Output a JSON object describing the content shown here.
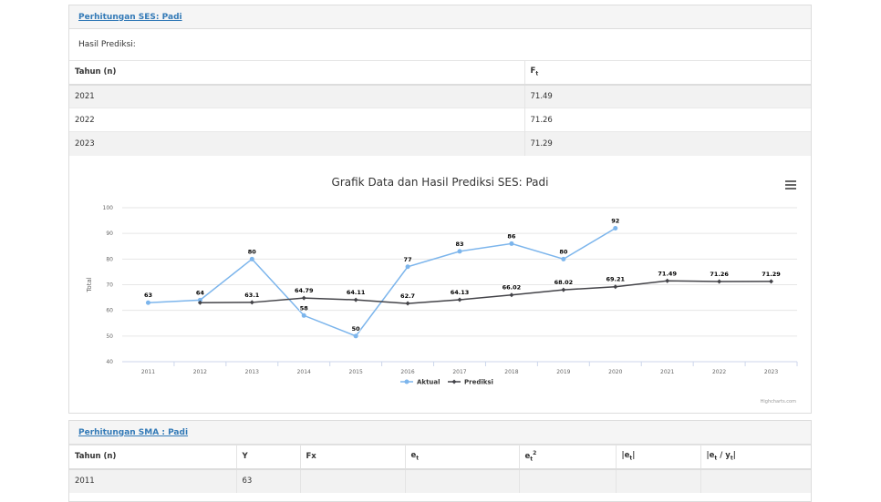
{
  "ses": {
    "heading": "Perhitungan SES: Padi",
    "result_label": "Hasil Prediksi:",
    "col_year": "Tahun (n)",
    "col_ft": "F",
    "col_ft_sub": "t",
    "rows": [
      {
        "year": "2021",
        "ft": "71.49"
      },
      {
        "year": "2022",
        "ft": "71.26"
      },
      {
        "year": "2023",
        "ft": "71.29"
      }
    ]
  },
  "chart_data": {
    "type": "line",
    "title": "Grafik Data dan Hasil Prediksi SES: Padi",
    "xlabel": "",
    "ylabel": "Total",
    "ylim": [
      40,
      100
    ],
    "yticks": [
      "40",
      "50",
      "60",
      "70",
      "80",
      "90",
      "100"
    ],
    "categories": [
      "2011",
      "2012",
      "2013",
      "2014",
      "2015",
      "2016",
      "2017",
      "2018",
      "2019",
      "2020",
      "2021",
      "2022",
      "2023"
    ],
    "series": [
      {
        "name": "Aktual",
        "color": "#7cb5ec",
        "values": [
          63,
          64,
          80,
          58,
          50,
          77,
          83,
          86,
          80,
          92,
          null,
          null,
          null
        ],
        "labels": [
          "63",
          "64",
          "80",
          "58",
          "50",
          "77",
          "83",
          "86",
          "80",
          "92",
          "",
          "",
          ""
        ]
      },
      {
        "name": "Prediksi",
        "color": "#434348",
        "values": [
          null,
          63,
          63.1,
          64.79,
          64.11,
          62.7,
          64.13,
          66.02,
          68.02,
          69.21,
          71.49,
          71.26,
          71.29
        ],
        "labels": [
          "",
          "",
          "63.1",
          "64.79",
          "64.11",
          "62.7",
          "64.13",
          "66.02",
          "68.02",
          "69.21",
          "71.49",
          "71.26",
          "71.29"
        ]
      }
    ],
    "grid": true,
    "legend_placement": "bottom-center",
    "credits": "Highcharts.com"
  },
  "sma": {
    "heading": "Perhitungan SMA : Padi",
    "cols": {
      "year": "Tahun (n)",
      "y": "Y",
      "fx": "Fx",
      "et": "e",
      "et_sub": "t",
      "et2": "e",
      "et2_sub": "t",
      "et2_sup": "2",
      "abs_et_pre": "|e",
      "abs_et_sub": "t",
      "abs_et_post": "|",
      "ratio_pre": "|e",
      "ratio_sub1": "t",
      "ratio_mid": " / y",
      "ratio_sub2": "t",
      "ratio_post": "|"
    },
    "rows": [
      {
        "year": "2011",
        "y": "63"
      }
    ]
  }
}
